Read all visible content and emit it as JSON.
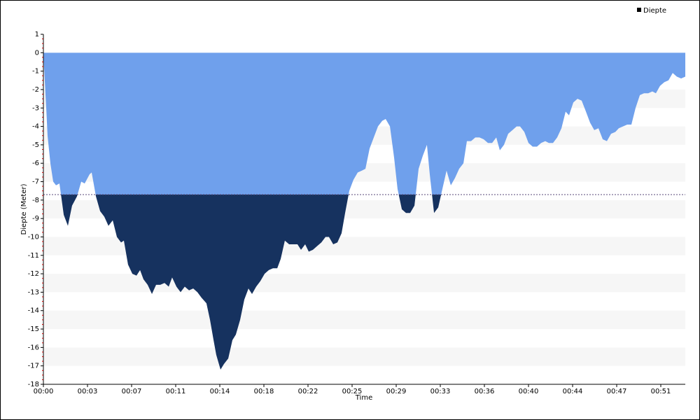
{
  "chart_data": {
    "type": "area",
    "xlabel": "Time",
    "ylabel": "Diepte (Meter)",
    "x": [
      0,
      0.11,
      0.23,
      0.34,
      0.57,
      0.8,
      1.03,
      1.31,
      1.66,
      2.0,
      2.34,
      2.74,
      3.09,
      3.37,
      3.77,
      3.94,
      4.29,
      4.63,
      4.97,
      5.31,
      5.66,
      6.0,
      6.34,
      6.57,
      6.91,
      7.26,
      7.6,
      7.89,
      8.17,
      8.51,
      8.86,
      9.2,
      9.54,
      9.89,
      10.23,
      10.51,
      10.86,
      11.2,
      11.54,
      11.89,
      12.23,
      12.57,
      12.91,
      13.31,
      13.6,
      13.89,
      14.11,
      14.46,
      14.74,
      15.09,
      15.43,
      15.71,
      16.06,
      16.4,
      16.74,
      17.03,
      17.37,
      17.71,
      18.06,
      18.4,
      18.74,
      19.09,
      19.37,
      19.71,
      20.06,
      20.4,
      20.74,
      21.03,
      21.37,
      21.66,
      22.0,
      22.34,
      22.69,
      23.03,
      23.31,
      23.66,
      24.0,
      24.34,
      24.63,
      24.97,
      25.31,
      25.66,
      26.0,
      26.29,
      26.63,
      26.97,
      27.31,
      27.66,
      27.94,
      28.29,
      28.63,
      28.91,
      29.26,
      29.6,
      29.94,
      30.29,
      30.63,
      30.97,
      31.31,
      31.54,
      31.89,
      32.23,
      32.57,
      32.91,
      33.26,
      33.6,
      33.94,
      34.29,
      34.57,
      34.91,
      35.26,
      35.6,
      35.94,
      36.29,
      36.63,
      36.97,
      37.26,
      37.6,
      37.94,
      38.29,
      38.63,
      38.91,
      39.26,
      39.6,
      39.94,
      40.29,
      40.63,
      40.97,
      41.26,
      41.6,
      41.94,
      42.29,
      42.63,
      42.91,
      43.26,
      43.6,
      43.94,
      44.29,
      44.63,
      44.97,
      45.31,
      45.66,
      46.0,
      46.34,
      46.69,
      46.97,
      47.31,
      47.66,
      48.0,
      48.34,
      48.69,
      49.03,
      49.37,
      49.71,
      50.0,
      50.34,
      50.69,
      51.03,
      51.37,
      51.71,
      52.06,
      52.4
    ],
    "series": [
      {
        "name": "Diepte",
        "color": "#6fa0ec",
        "below_color": "#16325f",
        "legend_color": "#000000",
        "values": [
          0,
          -1.5,
          -3,
          -4.5,
          -6,
          -7,
          -7.2,
          -7.1,
          -8.8,
          -9.4,
          -8.3,
          -7.8,
          -7,
          -7.1,
          -6.6,
          -6.5,
          -7.8,
          -8.6,
          -8.9,
          -9.4,
          -9.1,
          -10.0,
          -10.3,
          -10.2,
          -11.5,
          -12.0,
          -12.1,
          -11.8,
          -12.3,
          -12.6,
          -13.1,
          -12.6,
          -12.6,
          -12.5,
          -12.7,
          -12.2,
          -12.7,
          -13.0,
          -12.7,
          -12.9,
          -12.8,
          -13.0,
          -13.3,
          -13.6,
          -14.5,
          -15.6,
          -16.4,
          -17.2,
          -16.9,
          -16.6,
          -15.6,
          -15.3,
          -14.5,
          -13.4,
          -12.8,
          -13.1,
          -12.7,
          -12.4,
          -12.0,
          -11.8,
          -11.7,
          -11.7,
          -11.2,
          -10.2,
          -10.4,
          -10.4,
          -10.4,
          -10.7,
          -10.4,
          -10.8,
          -10.7,
          -10.5,
          -10.3,
          -10.0,
          -10.0,
          -10.4,
          -10.3,
          -9.8,
          -8.7,
          -7.5,
          -6.9,
          -6.5,
          -6.4,
          -6.3,
          -5.2,
          -4.6,
          -4.0,
          -3.7,
          -3.6,
          -4.0,
          -5.7,
          -7.4,
          -8.5,
          -8.7,
          -8.7,
          -8.3,
          -6.3,
          -5.6,
          -5.0,
          -6.6,
          -8.7,
          -8.4,
          -7.4,
          -6.4,
          -7.2,
          -6.8,
          -6.3,
          -6.0,
          -4.8,
          -4.8,
          -4.6,
          -4.6,
          -4.7,
          -4.9,
          -4.9,
          -4.6,
          -5.3,
          -5.0,
          -4.4,
          -4.2,
          -4.0,
          -4.0,
          -4.3,
          -4.9,
          -5.1,
          -5.1,
          -4.9,
          -4.8,
          -4.9,
          -4.9,
          -4.6,
          -4.1,
          -3.2,
          -3.4,
          -2.7,
          -2.5,
          -2.6,
          -3.2,
          -3.8,
          -4.2,
          -4.1,
          -4.7,
          -4.8,
          -4.4,
          -4.3,
          -4.1,
          -4.0,
          -3.9,
          -3.9,
          -3.0,
          -2.3,
          -2.2,
          -2.2,
          -2.1,
          -2.2,
          -1.8,
          -1.6,
          -1.5,
          -1.1,
          -1.3,
          -1.4,
          -1.3
        ]
      }
    ],
    "threshold": -7.7,
    "xlim": [
      0,
      52.4
    ],
    "xticks": [
      {
        "value": 0,
        "label": "00:00"
      },
      {
        "value": 3.6,
        "label": "00:03"
      },
      {
        "value": 7.2,
        "label": "00:07"
      },
      {
        "value": 10.8,
        "label": "00:11"
      },
      {
        "value": 14.4,
        "label": "00:14"
      },
      {
        "value": 18,
        "label": "00:18"
      },
      {
        "value": 21.6,
        "label": "00:22"
      },
      {
        "value": 25.2,
        "label": "00:25"
      },
      {
        "value": 28.8,
        "label": "00:29"
      },
      {
        "value": 32.4,
        "label": "00:33"
      },
      {
        "value": 36,
        "label": "00:36"
      },
      {
        "value": 39.6,
        "label": "00:40"
      },
      {
        "value": 43.2,
        "label": "00:44"
      },
      {
        "value": 46.8,
        "label": "00:47"
      },
      {
        "value": 50.4,
        "label": "00:51"
      }
    ],
    "ylim": [
      -18,
      1
    ],
    "yticks": [
      1,
      0,
      -1,
      -2,
      -3,
      -4,
      -5,
      -6,
      -7,
      -8,
      -9,
      -10,
      -11,
      -12,
      -13,
      -14,
      -15,
      -16,
      -17,
      -18
    ],
    "grid": true,
    "legend": "top-right"
  }
}
